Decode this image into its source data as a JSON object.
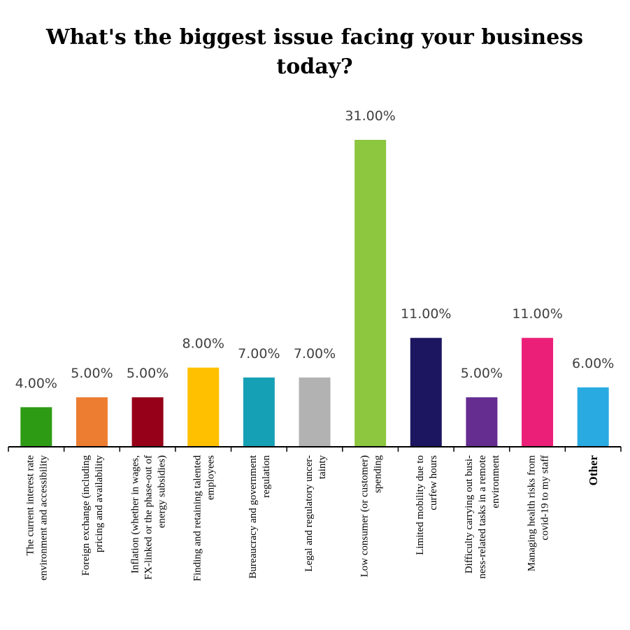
{
  "chart_data": {
    "type": "bar",
    "title_lines": [
      "What's the biggest issue facing your business",
      "today?"
    ],
    "categories": [
      [
        "The current interest rate",
        "environment and accessibility"
      ],
      [
        "Foreign exchange (including",
        "pricing and availability"
      ],
      [
        "Inflation (whether in wages,",
        "FX-linked or the phase-out of",
        "energy subsidies)"
      ],
      [
        "Finding and retaining talented",
        "employees"
      ],
      [
        "Bureaucracy and government",
        "regulation"
      ],
      [
        "Legal and regulatory uncer-",
        "tainty"
      ],
      [
        "Low consumer (or customer)",
        "spending"
      ],
      [
        "Limited mobility due to",
        "curfew hours"
      ],
      [
        "Difficulty carrying out busi-",
        "ness-related tasks in a remote",
        "environment"
      ],
      [
        "Managing health risks from",
        "covid-19 to my staff"
      ],
      [
        "Other"
      ]
    ],
    "values": [
      4,
      5,
      5,
      8,
      7,
      7,
      31,
      11,
      5,
      11,
      6
    ],
    "value_labels": [
      "4.00%",
      "5.00%",
      "5.00%",
      "8.00%",
      "7.00%",
      "7.00%",
      "31.00%",
      "11.00%",
      "5.00%",
      "11.00%",
      "6.00%"
    ],
    "colors": [
      "#2e9b15",
      "#ed7d31",
      "#960018",
      "#ffc000",
      "#16a0b5",
      "#b2b2b2",
      "#8dc63f",
      "#1c1660",
      "#662d91",
      "#ec1f78",
      "#29abe2"
    ],
    "ylim": [
      0,
      31
    ],
    "grid": false,
    "legend": "none"
  }
}
